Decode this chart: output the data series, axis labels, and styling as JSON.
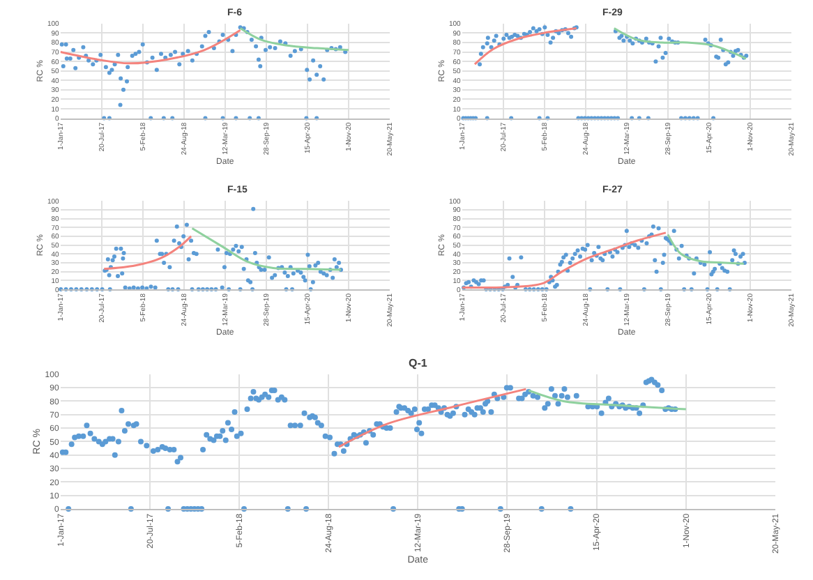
{
  "chart_data": [
    {
      "type": "scatter",
      "title": "F-6",
      "xlabel": "Date",
      "ylabel": "RC %",
      "grid": true,
      "marker": "circle",
      "xlim": [
        "2017-01-01",
        "2021-05-20"
      ],
      "xticks": [
        {
          "value": "2017-01-01",
          "label": "1-Jan-17"
        },
        {
          "value": "2017-07-20",
          "label": "20-Jul-17"
        },
        {
          "value": "2018-02-05",
          "label": "5-Feb-18"
        },
        {
          "value": "2018-08-24",
          "label": "24-Aug-18"
        },
        {
          "value": "2019-03-12",
          "label": "12-Mar-19"
        },
        {
          "value": "2019-09-28",
          "label": "28-Sep-19"
        },
        {
          "value": "2020-04-15",
          "label": "15-Apr-20"
        },
        {
          "value": "2020-11-01",
          "label": "1-Nov-20"
        },
        {
          "value": "2021-05-20",
          "label": "20-May-21"
        }
      ],
      "ylim": [
        0,
        100
      ],
      "yticks": [
        0,
        10,
        20,
        30,
        40,
        50,
        60,
        70,
        80,
        90,
        100
      ],
      "series": [
        {
          "color": "#5b9bd5",
          "x": [
            "2017-01-08",
            "2017-01-28",
            "2017-01-15",
            "2017-02-01",
            "2017-02-18",
            "2017-03-05",
            "2017-03-15",
            "2017-04-01",
            "2017-04-22",
            "2017-05-05",
            "2017-05-18",
            "2017-06-08",
            "2017-06-25",
            "2017-07-15",
            "2017-08-10",
            "2017-08-27",
            "2017-09-08",
            "2017-09-22",
            "2017-10-08",
            "2017-10-21",
            "2017-11-03",
            "2017-10-19",
            "2017-11-20",
            "2017-11-24",
            "2017-12-16",
            "2018-01-01",
            "2018-01-18",
            "2018-02-05",
            "2018-02-26",
            "2018-03-24",
            "2018-04-14",
            "2018-05-05",
            "2018-05-26",
            "2018-06-21",
            "2018-07-12",
            "2018-08-02",
            "2018-08-19",
            "2018-09-13",
            "2018-10-04",
            "2018-10-25",
            "2018-11-20",
            "2018-12-06",
            "2018-12-23",
            "2019-01-17",
            "2019-02-12",
            "2019-03-01",
            "2019-03-27",
            "2019-04-17",
            "2019-05-04",
            "2019-05-25",
            "2019-06-11",
            "2019-06-28",
            "2019-07-19",
            "2019-08-09",
            "2019-08-22",
            "2019-08-30",
            "2019-09-04",
            "2019-09-25",
            "2019-10-16",
            "2019-11-10",
            "2019-12-05",
            "2019-12-30",
            "2020-01-24",
            "2020-02-14",
            "2020-03-15",
            "2020-04-13",
            "2020-04-26",
            "2020-05-13",
            "2020-05-30",
            "2020-06-16",
            "2020-07-03",
            "2020-07-20",
            "2020-08-10",
            "2020-08-31",
            "2020-09-21",
            "2020-10-16",
            "2017-08-01",
            "2017-08-27",
            "2018-03-16",
            "2018-05-18",
            "2018-06-29",
            "2018-12-06",
            "2019-03-01",
            "2019-05-04",
            "2019-07-10",
            "2019-08-22",
            "2020-04-10",
            "2020-05-30"
          ],
          "values": [
            78,
            78,
            55,
            63,
            63,
            72,
            53,
            64,
            75,
            66,
            61,
            57,
            61,
            67,
            54,
            48,
            51,
            57,
            67,
            42,
            30,
            14,
            39,
            54,
            66,
            68,
            70,
            78,
            59,
            64,
            51,
            68,
            64,
            67,
            70,
            57,
            68,
            71,
            61,
            68,
            76,
            87,
            91,
            74,
            81,
            88,
            83,
            71,
            88,
            96,
            95,
            91,
            83,
            76,
            62,
            55,
            85,
            72,
            75,
            74,
            81,
            79,
            66,
            71,
            73,
            51,
            41,
            61,
            46,
            55,
            41,
            72,
            74,
            73,
            75,
            70,
            0,
            0,
            0,
            0,
            0,
            0,
            0,
            0,
            0,
            0,
            0,
            0
          ]
        },
        {
          "type": "line",
          "color": "#f4837d",
          "marker": "none",
          "x": [
            "2017-01-01",
            "2017-07-01",
            "2017-12-01",
            "2018-06-01",
            "2018-12-01",
            "2019-05-25"
          ],
          "values": [
            70,
            62,
            58,
            62,
            72,
            93
          ]
        },
        {
          "type": "line",
          "color": "#8fd19e",
          "marker": "none",
          "x": [
            "2019-05-25",
            "2019-09-01",
            "2020-01-01",
            "2020-06-01",
            "2020-11-01"
          ],
          "values": [
            95,
            83,
            77,
            74,
            72
          ]
        }
      ]
    },
    {
      "type": "scatter",
      "title": "F-29",
      "xlabel": "Date",
      "ylabel": "RC %",
      "grid": true,
      "marker": "circle",
      "xlim": [
        "2017-01-01",
        "2021-05-20"
      ],
      "xticks": [
        {
          "value": "2017-01-01",
          "label": "1-Jan-17"
        },
        {
          "value": "2017-07-20",
          "label": "20-Jul-17"
        },
        {
          "value": "2018-02-05",
          "label": "5-Feb-18"
        },
        {
          "value": "2018-08-24",
          "label": "24-Aug-18"
        },
        {
          "value": "2019-03-12",
          "label": "12-Mar-19"
        },
        {
          "value": "2019-09-28",
          "label": "28-Sep-19"
        },
        {
          "value": "2020-04-15",
          "label": "15-Apr-20"
        },
        {
          "value": "2020-11-01",
          "label": "1-Nov-20"
        },
        {
          "value": "2021-05-20",
          "label": "20-May-21"
        }
      ],
      "ylim": [
        0,
        100
      ],
      "yticks": [
        0,
        10,
        20,
        30,
        40,
        50,
        60,
        70,
        80,
        90,
        100
      ],
      "series": [
        {
          "color": "#5b9bd5",
          "x": [
            "2017-03-28",
            "2017-04-03",
            "2017-04-13",
            "2017-05-03",
            "2017-05-07",
            "2017-05-23",
            "2017-06-06",
            "2017-06-16",
            "2017-07-02",
            "2017-07-22",
            "2017-08-05",
            "2017-08-19",
            "2017-08-31",
            "2017-09-14",
            "2017-09-28",
            "2017-10-14",
            "2017-10-30",
            "2017-11-13",
            "2017-11-27",
            "2017-12-13",
            "2017-12-29",
            "2018-01-12",
            "2018-01-26",
            "2018-02-07",
            "2018-02-21",
            "2018-03-07",
            "2018-03-19",
            "2018-04-02",
            "2018-04-16",
            "2018-05-02",
            "2018-05-18",
            "2018-06-01",
            "2018-06-15",
            "2018-07-01",
            "2018-07-11",
            "2019-01-17",
            "2019-02-05",
            "2019-02-15",
            "2019-02-25",
            "2019-03-13",
            "2019-03-27",
            "2019-04-10",
            "2019-04-26",
            "2019-05-12",
            "2019-05-26",
            "2019-06-15",
            "2019-06-29",
            "2019-07-15",
            "2019-07-31",
            "2019-08-14",
            "2019-08-24",
            "2019-09-03",
            "2019-09-17",
            "2019-10-03",
            "2019-10-19",
            "2019-11-02",
            "2019-11-16",
            "2020-03-28",
            "2020-04-11",
            "2020-04-25",
            "2020-05-20",
            "2020-05-30",
            "2020-06-11",
            "2020-06-23",
            "2020-07-05",
            "2020-07-17",
            "2020-07-29",
            "2020-08-10",
            "2020-08-22",
            "2020-09-03",
            "2020-09-17",
            "2020-10-01",
            "2020-10-13",
            "2017-01-07",
            "2017-01-19",
            "2017-01-31",
            "2017-02-12",
            "2017-02-24",
            "2017-03-08",
            "2017-05-03",
            "2017-08-28",
            "2018-01-12",
            "2018-02-21",
            "2018-07-20",
            "2018-08-05",
            "2018-08-21",
            "2018-09-06",
            "2018-09-22",
            "2018-10-08",
            "2018-10-24",
            "2018-11-09",
            "2018-11-25",
            "2018-12-11",
            "2018-12-27",
            "2019-01-12",
            "2019-01-28",
            "2019-04-06",
            "2019-05-12",
            "2019-06-25",
            "2019-12-02",
            "2019-12-22",
            "2020-01-11",
            "2020-01-31",
            "2020-02-20",
            "2020-05-06"
          ],
          "values": [
            57,
            68,
            75,
            79,
            85,
            75,
            82,
            87,
            78,
            84,
            88,
            85,
            86,
            88,
            87,
            85,
            89,
            88,
            91,
            95,
            92,
            94,
            89,
            96,
            88,
            80,
            85,
            92,
            90,
            93,
            94,
            90,
            86,
            95,
            96,
            92,
            85,
            87,
            82,
            86,
            82,
            79,
            84,
            82,
            80,
            84,
            80,
            79,
            60,
            76,
            85,
            64,
            69,
            84,
            81,
            80,
            80,
            83,
            79,
            77,
            65,
            64,
            83,
            72,
            57,
            59,
            70,
            66,
            71,
            72,
            67,
            64,
            66,
            0,
            0,
            0,
            0,
            0,
            0,
            0,
            0,
            0,
            0,
            0,
            0,
            0,
            0,
            0,
            0,
            0,
            0,
            0,
            0,
            0,
            0,
            0,
            0,
            0,
            0,
            0,
            0,
            0,
            0,
            0,
            0
          ]
        },
        {
          "type": "line",
          "color": "#f4837d",
          "marker": "none",
          "x": [
            "2017-03-04",
            "2017-06-01",
            "2017-10-01",
            "2018-02-01",
            "2018-07-11"
          ],
          "values": [
            57,
            73,
            84,
            90,
            95
          ]
        },
        {
          "type": "line",
          "color": "#8fd19e",
          "marker": "none",
          "x": [
            "2019-01-10",
            "2019-05-01",
            "2019-09-01",
            "2020-01-01",
            "2020-05-01",
            "2020-08-01",
            "2020-10-12"
          ],
          "values": [
            95,
            83,
            80,
            80,
            77,
            70,
            63
          ]
        }
      ]
    },
    {
      "type": "scatter",
      "title": "F-15",
      "xlabel": "Date",
      "ylabel": "RC %",
      "grid": true,
      "marker": "circle",
      "xlim": [
        "2017-01-01",
        "2021-05-20"
      ],
      "xticks": [
        {
          "value": "2017-01-01",
          "label": "1-Jan-17"
        },
        {
          "value": "2017-07-20",
          "label": "20-Jul-17"
        },
        {
          "value": "2018-02-05",
          "label": "5-Feb-18"
        },
        {
          "value": "2018-08-24",
          "label": "24-Aug-18"
        },
        {
          "value": "2019-03-12",
          "label": "12-Mar-19"
        },
        {
          "value": "2019-09-28",
          "label": "28-Sep-19"
        },
        {
          "value": "2020-04-15",
          "label": "15-Apr-20"
        },
        {
          "value": "2020-11-01",
          "label": "1-Nov-20"
        },
        {
          "value": "2021-05-20",
          "label": "20-May-21"
        }
      ],
      "ylim": [
        0,
        100
      ],
      "yticks": [
        0,
        10,
        20,
        30,
        40,
        50,
        60,
        70,
        80,
        90,
        100
      ],
      "series": [
        {
          "color": "#5b9bd5",
          "x": [
            "2017-08-05",
            "2017-08-13",
            "2017-08-20",
            "2017-08-26",
            "2017-09-03",
            "2017-09-12",
            "2017-09-20",
            "2017-09-29",
            "2017-10-07",
            "2017-10-22",
            "2017-10-28",
            "2017-11-01",
            "2017-11-05",
            "2018-04-14",
            "2018-04-30",
            "2018-05-09",
            "2018-05-19",
            "2018-05-30",
            "2018-06-16",
            "2018-07-07",
            "2018-07-21",
            "2018-08-01",
            "2018-08-11",
            "2018-08-22",
            "2018-09-07",
            "2018-09-16",
            "2018-09-28",
            "2018-10-11",
            "2018-10-24",
            "2019-02-05",
            "2019-03-09",
            "2019-03-19",
            "2019-04-05",
            "2019-04-20",
            "2019-05-04",
            "2019-05-17",
            "2019-06-01",
            "2019-06-11",
            "2019-06-24",
            "2019-07-02",
            "2019-07-13",
            "2019-07-27",
            "2019-08-05",
            "2019-08-13",
            "2019-08-24",
            "2019-09-03",
            "2019-09-20",
            "2019-10-11",
            "2019-10-26",
            "2019-11-09",
            "2019-11-26",
            "2019-12-13",
            "2019-12-27",
            "2020-01-11",
            "2020-01-24",
            "2020-02-07",
            "2020-02-28",
            "2020-03-14",
            "2020-03-27",
            "2020-04-04",
            "2020-04-17",
            "2020-04-25",
            "2020-05-12",
            "2020-05-24",
            "2020-06-06",
            "2020-06-18",
            "2020-07-03",
            "2020-07-18",
            "2020-08-04",
            "2020-08-16",
            "2020-08-25",
            "2020-09-04",
            "2020-09-15",
            "2020-09-25",
            "2017-01-03",
            "2017-01-28",
            "2017-02-22",
            "2017-03-19",
            "2017-04-13",
            "2017-05-09",
            "2017-06-03",
            "2017-06-28",
            "2017-07-23",
            "2017-11-12",
            "2017-12-03",
            "2017-12-23",
            "2018-01-13",
            "2018-02-03",
            "2018-02-24",
            "2018-03-17",
            "2018-04-07",
            "2017-08-30",
            "2018-06-09",
            "2018-06-30",
            "2018-07-27",
            "2018-10-03",
            "2018-11-03",
            "2018-11-24",
            "2018-12-15",
            "2019-01-05",
            "2019-01-26",
            "2019-02-26",
            "2019-03-30",
            "2019-05-25",
            "2019-07-23",
            "2020-01-03",
            "2020-02-01",
            "2020-05-01"
          ],
          "values": [
            21,
            22,
            34,
            16,
            25,
            33,
            37,
            46,
            15,
            46,
            18,
            35,
            41,
            55,
            40,
            40,
            30,
            40,
            25,
            55,
            71,
            52,
            48,
            60,
            73,
            34,
            55,
            41,
            40,
            45,
            25,
            41,
            40,
            45,
            49,
            43,
            48,
            23,
            34,
            10,
            8,
            91,
            41,
            30,
            25,
            22,
            22,
            36,
            13,
            16,
            24,
            25,
            19,
            15,
            25,
            18,
            21,
            19,
            14,
            10,
            39,
            26,
            8,
            27,
            30,
            20,
            18,
            16,
            22,
            13,
            34,
            25,
            30,
            22,
            0,
            0,
            0,
            0,
            0,
            0,
            0,
            0,
            0,
            2,
            1,
            2,
            1,
            2,
            1,
            3,
            2,
            0,
            0,
            0,
            0,
            0,
            0,
            0,
            0,
            0,
            0,
            2,
            0,
            0,
            0,
            0,
            0,
            0
          ]
        },
        {
          "type": "line",
          "color": "#f4837d",
          "marker": "none",
          "x": [
            "2017-08-01",
            "2018-01-01",
            "2018-05-01",
            "2018-08-01",
            "2018-09-28"
          ],
          "values": [
            23,
            27,
            35,
            48,
            60
          ]
        },
        {
          "type": "line",
          "color": "#8fd19e",
          "marker": "none",
          "x": [
            "2018-10-03",
            "2019-03-01",
            "2019-07-01",
            "2019-11-01",
            "2020-04-01",
            "2020-09-25"
          ],
          "values": [
            69,
            48,
            31,
            24,
            23,
            22
          ]
        }
      ]
    },
    {
      "type": "scatter",
      "title": "F-27",
      "xlabel": "Date",
      "ylabel": "RC %",
      "grid": true,
      "marker": "circle",
      "xlim": [
        "2017-01-01",
        "2021-05-20"
      ],
      "xticks": [
        {
          "value": "2017-01-01",
          "label": "1-Jan-17"
        },
        {
          "value": "2017-07-20",
          "label": "20-Jul-17"
        },
        {
          "value": "2018-02-05",
          "label": "5-Feb-18"
        },
        {
          "value": "2018-08-24",
          "label": "24-Aug-18"
        },
        {
          "value": "2019-03-12",
          "label": "12-Mar-19"
        },
        {
          "value": "2019-09-28",
          "label": "28-Sep-19"
        },
        {
          "value": "2020-04-15",
          "label": "15-Apr-20"
        },
        {
          "value": "2020-11-01",
          "label": "1-Nov-20"
        },
        {
          "value": "2021-05-20",
          "label": "20-May-21"
        }
      ],
      "ylim": [
        0,
        100
      ],
      "yticks": [
        0,
        10,
        20,
        30,
        40,
        50,
        60,
        70,
        80,
        90,
        100
      ],
      "series": [
        {
          "color": "#5b9bd5",
          "x": [
            "2017-01-09",
            "2017-01-21",
            "2017-02-02",
            "2017-02-14",
            "2017-02-27",
            "2017-03-11",
            "2017-03-23",
            "2017-04-04",
            "2017-04-16",
            "2017-04-28",
            "2017-05-18",
            "2017-06-08",
            "2017-06-28",
            "2017-07-18",
            "2017-07-28",
            "2017-08-11",
            "2017-08-19",
            "2017-09-04",
            "2017-09-17",
            "2017-09-27",
            "2017-10-15",
            "2017-11-06",
            "2017-11-26",
            "2017-12-16",
            "2018-01-06",
            "2018-01-26",
            "2018-02-15",
            "2018-03-01",
            "2018-03-09",
            "2018-03-17",
            "2018-03-29",
            "2018-04-07",
            "2018-04-13",
            "2018-04-23",
            "2018-05-01",
            "2018-05-09",
            "2018-05-21",
            "2018-05-29",
            "2018-06-10",
            "2018-06-22",
            "2018-07-04",
            "2018-07-17",
            "2018-07-29",
            "2018-08-10",
            "2018-08-22",
            "2018-09-03",
            "2018-09-15",
            "2018-09-23",
            "2018-10-05",
            "2018-10-17",
            "2018-10-26",
            "2018-11-05",
            "2018-11-15",
            "2018-11-25",
            "2018-12-09",
            "2018-12-21",
            "2019-01-02",
            "2019-01-14",
            "2019-01-26",
            "2019-02-08",
            "2019-02-20",
            "2019-03-04",
            "2019-03-12",
            "2019-03-24",
            "2019-04-05",
            "2019-04-21",
            "2019-05-07",
            "2019-05-24",
            "2019-06-05",
            "2019-06-17",
            "2019-06-29",
            "2019-07-11",
            "2019-07-19",
            "2019-07-27",
            "2019-08-04",
            "2019-08-14",
            "2019-08-25",
            "2019-09-04",
            "2019-09-10",
            "2019-09-18",
            "2019-09-24",
            "2019-10-04",
            "2019-10-14",
            "2019-10-28",
            "2019-11-09",
            "2019-11-21",
            "2019-12-04",
            "2019-12-16",
            "2019-12-28",
            "2020-01-09",
            "2020-01-21",
            "2020-02-02",
            "2020-02-14",
            "2020-03-05",
            "2020-03-24",
            "2020-04-07",
            "2020-04-19",
            "2020-04-27",
            "2020-05-05",
            "2020-05-13",
            "2020-05-25",
            "2020-06-06",
            "2020-06-18",
            "2020-06-30",
            "2020-07-13",
            "2020-07-25",
            "2020-08-06",
            "2020-08-14",
            "2020-08-22",
            "2020-09-03",
            "2020-09-15",
            "2020-09-27",
            "2020-10-05"
          ],
          "values": [
            2,
            7,
            8,
            3,
            10,
            8,
            6,
            10,
            10,
            0,
            0,
            0,
            0,
            0,
            3,
            5,
            35,
            14,
            2,
            5,
            36,
            0,
            0,
            0,
            0,
            0,
            0,
            8,
            14,
            10,
            3,
            5,
            20,
            28,
            31,
            36,
            39,
            21,
            30,
            35,
            40,
            44,
            37,
            46,
            45,
            50,
            0,
            33,
            41,
            38,
            48,
            35,
            33,
            40,
            0,
            42,
            37,
            45,
            42,
            0,
            47,
            50,
            66,
            48,
            52,
            50,
            47,
            55,
            0,
            52,
            60,
            62,
            71,
            33,
            20,
            69,
            0,
            30,
            39,
            58,
            57,
            55,
            52,
            66,
            45,
            35,
            49,
            0,
            38,
            35,
            0,
            18,
            35,
            30,
            28,
            0,
            42,
            17,
            20,
            23,
            0,
            29,
            24,
            21,
            20,
            0,
            33,
            44,
            40,
            29,
            37,
            40,
            30
          ]
        },
        {
          "type": "line",
          "color": "#f4837d",
          "marker": "none",
          "x": [
            "2017-01-01",
            "2017-10-01",
            "2018-02-01",
            "2018-05-01",
            "2018-09-01",
            "2019-01-01",
            "2019-05-01",
            "2019-09-18"
          ],
          "values": [
            2,
            3,
            7,
            20,
            35,
            45,
            55,
            64
          ]
        },
        {
          "type": "line",
          "color": "#8fd19e",
          "marker": "none",
          "x": [
            "2019-09-28",
            "2019-12-01",
            "2020-03-01",
            "2020-07-01",
            "2020-10-01"
          ],
          "values": [
            62,
            40,
            32,
            30,
            29
          ]
        }
      ]
    },
    {
      "type": "scatter",
      "title": "Q-1",
      "xlabel": "Date",
      "ylabel": "RC %",
      "grid": true,
      "marker": "circle",
      "xlim": [
        "2017-01-01",
        "2021-05-20"
      ],
      "xticks": [
        {
          "value": "2017-01-01",
          "label": "1-Jan-17"
        },
        {
          "value": "2017-07-20",
          "label": "20-Jul-17"
        },
        {
          "value": "2018-02-05",
          "label": "5-Feb-18"
        },
        {
          "value": "2018-08-24",
          "label": "24-Aug-18"
        },
        {
          "value": "2019-03-12",
          "label": "12-Mar-19"
        },
        {
          "value": "2019-09-28",
          "label": "28-Sep-19"
        },
        {
          "value": "2020-04-15",
          "label": "15-Apr-20"
        },
        {
          "value": "2020-11-01",
          "label": "1-Nov-20"
        },
        {
          "value": "2021-05-20",
          "label": "20-May-21"
        }
      ],
      "ylim": [
        0,
        100
      ],
      "yticks": [
        0,
        10,
        20,
        30,
        40,
        50,
        60,
        70,
        80,
        90,
        100
      ],
      "series": [
        {
          "color": "#5b9bd5",
          "x": [
            "2017-01-06",
            "2017-01-13",
            "2017-01-19",
            "2017-01-26",
            "2017-02-02",
            "2017-02-11",
            "2017-02-21",
            "2017-03-01",
            "2017-03-09",
            "2017-03-18",
            "2017-03-28",
            "2017-04-05",
            "2017-04-12",
            "2017-04-21",
            "2017-04-28",
            "2017-05-03",
            "2017-05-11",
            "2017-05-18",
            "2017-05-25",
            "2017-06-02",
            "2017-06-08",
            "2017-06-14",
            "2017-06-20",
            "2017-06-30",
            "2017-07-13",
            "2017-07-28",
            "2017-08-07",
            "2017-08-17",
            "2017-08-24",
            "2017-08-30",
            "2017-09-03",
            "2017-09-12",
            "2017-09-20",
            "2017-09-27",
            "2017-10-04",
            "2017-10-12",
            "2017-10-20",
            "2017-10-28",
            "2017-11-05",
            "2017-11-13",
            "2017-11-16",
            "2017-11-24",
            "2017-12-02",
            "2017-12-10",
            "2017-12-17",
            "2017-12-24",
            "2017-12-30",
            "2018-01-06",
            "2018-01-11",
            "2018-01-19",
            "2018-01-26",
            "2018-01-31",
            "2018-02-09",
            "2018-02-16",
            "2018-02-23",
            "2018-03-03",
            "2018-03-09",
            "2018-03-15",
            "2018-03-21",
            "2018-03-28",
            "2018-04-04",
            "2018-04-12",
            "2018-04-19",
            "2018-04-25",
            "2018-05-03",
            "2018-05-11",
            "2018-05-18",
            "2018-05-25",
            "2018-05-31",
            "2018-06-10",
            "2018-06-22",
            "2018-07-01",
            "2018-07-05",
            "2018-07-13",
            "2018-07-19",
            "2018-07-25",
            "2018-07-31",
            "2018-08-08",
            "2018-08-17",
            "2018-08-27",
            "2018-09-06",
            "2018-09-13",
            "2018-09-20",
            "2018-09-27",
            "2018-10-04",
            "2018-10-12",
            "2018-10-20",
            "2018-10-27",
            "2018-11-03",
            "2018-11-11",
            "2018-11-16",
            "2018-11-24",
            "2018-12-02",
            "2018-12-10",
            "2018-12-17",
            "2018-12-24",
            "2019-01-01",
            "2019-01-09",
            "2019-01-16",
            "2019-01-23",
            "2019-01-29",
            "2019-02-02",
            "2019-02-10",
            "2019-02-18",
            "2019-02-25",
            "2019-03-05",
            "2019-03-10",
            "2019-03-15",
            "2019-03-20",
            "2019-03-27",
            "2019-04-04",
            "2019-04-12",
            "2019-04-19",
            "2019-04-27",
            "2019-05-03",
            "2019-05-10",
            "2019-05-17",
            "2019-05-23",
            "2019-05-30",
            "2019-06-06",
            "2019-06-12",
            "2019-06-19",
            "2019-06-25",
            "2019-07-03",
            "2019-07-10",
            "2019-07-17",
            "2019-07-23",
            "2019-07-30",
            "2019-08-05",
            "2019-08-10",
            "2019-08-15",
            "2019-08-23",
            "2019-08-30",
            "2019-09-06",
            "2019-09-13",
            "2019-09-20",
            "2019-09-27",
            "2019-10-05",
            "2019-10-24",
            "2019-10-31",
            "2019-11-07",
            "2019-11-15",
            "2019-11-25",
            "2019-12-05",
            "2019-12-14",
            "2019-12-21",
            "2019-12-28",
            "2020-01-05",
            "2020-01-13",
            "2020-01-20",
            "2020-01-28",
            "2020-02-03",
            "2020-02-10",
            "2020-02-17",
            "2020-03-01",
            "2020-03-27",
            "2020-04-06",
            "2020-04-16",
            "2020-04-26",
            "2020-05-05",
            "2020-05-12",
            "2020-05-19",
            "2020-05-28",
            "2020-06-05",
            "2020-06-12",
            "2020-06-19",
            "2020-06-27",
            "2020-07-05",
            "2020-07-13",
            "2020-07-20",
            "2020-07-28",
            "2020-08-04",
            "2020-08-10",
            "2020-08-16",
            "2020-08-23",
            "2020-08-30",
            "2020-09-08",
            "2020-09-16",
            "2020-09-23",
            "2020-09-30",
            "2020-10-08"
          ],
          "values": [
            42,
            42,
            0,
            48,
            53,
            54,
            54,
            62,
            56,
            52,
            50,
            48,
            50,
            52,
            52,
            40,
            50,
            73,
            58,
            63,
            0,
            62,
            63,
            50,
            47,
            43,
            44,
            46,
            45,
            0,
            44,
            44,
            35,
            38,
            0,
            0,
            0,
            0,
            0,
            0,
            44,
            55,
            52,
            51,
            54,
            54,
            58,
            51,
            64,
            59,
            72,
            54,
            56,
            0,
            74,
            82,
            87,
            82,
            81,
            83,
            85,
            83,
            88,
            88,
            81,
            83,
            81,
            0,
            62,
            62,
            62,
            71,
            0,
            68,
            69,
            68,
            64,
            62,
            54,
            53,
            41,
            48,
            48,
            43,
            48,
            52,
            55,
            54,
            55,
            57,
            49,
            58,
            55,
            63,
            63,
            61,
            60,
            60,
            0,
            72,
            76,
            75,
            75,
            73,
            71,
            74,
            59,
            64,
            56,
            74,
            74,
            77,
            77,
            75,
            72,
            75,
            70,
            69,
            71,
            76,
            0,
            0,
            70,
            74,
            72,
            70,
            75,
            75,
            72,
            78,
            80,
            72,
            85,
            82,
            0,
            83,
            90,
            90,
            82,
            82,
            85,
            87,
            84,
            83,
            0,
            75,
            78,
            89,
            84,
            78,
            84,
            89,
            83,
            0,
            84,
            76,
            76,
            76,
            71,
            79,
            82,
            76,
            78,
            76,
            77,
            75,
            76,
            75,
            75,
            71,
            77,
            94,
            95,
            96,
            94,
            92,
            88,
            74,
            75,
            74,
            74
          ]
        },
        {
          "type": "line",
          "color": "#f4837d",
          "marker": "none",
          "x": [
            "2018-09-16",
            "2019-01-01",
            "2019-06-01",
            "2019-11-09"
          ],
          "values": [
            46,
            63,
            76,
            89
          ]
        },
        {
          "type": "line",
          "color": "#8fd19e",
          "marker": "none",
          "x": [
            "2019-11-15",
            "2020-02-01",
            "2020-06-01",
            "2020-11-01"
          ],
          "values": [
            88,
            80,
            77,
            74
          ]
        }
      ]
    }
  ]
}
